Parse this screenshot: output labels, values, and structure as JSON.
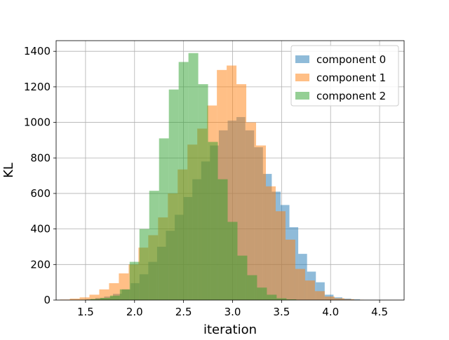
{
  "chart_data": {
    "type": "bar",
    "subtype": "histogram-overlay",
    "xlabel": "iteration",
    "ylabel": "KL",
    "xlim": [
      1.2,
      4.75
    ],
    "ylim": [
      0,
      1460
    ],
    "xticks": [
      "1.5",
      "2.0",
      "2.5",
      "3.0",
      "3.5",
      "4.0",
      "4.5"
    ],
    "yticks": [
      "0",
      "200",
      "400",
      "600",
      "800",
      "1000",
      "1200",
      "1400"
    ],
    "grid": true,
    "legend_position": "upper-right",
    "opacity": 0.5,
    "series": [
      {
        "name": "component 0",
        "color": "#1f77b4",
        "bins": [
          {
            "x0": 1.51,
            "x1": 1.6,
            "y": 5
          },
          {
            "x0": 1.6,
            "x1": 1.69,
            "y": 12
          },
          {
            "x0": 1.69,
            "x1": 1.78,
            "y": 20
          },
          {
            "x0": 1.78,
            "x1": 1.87,
            "y": 35
          },
          {
            "x0": 1.87,
            "x1": 1.96,
            "y": 60
          },
          {
            "x0": 1.96,
            "x1": 2.05,
            "y": 95
          },
          {
            "x0": 2.05,
            "x1": 2.14,
            "y": 145
          },
          {
            "x0": 2.14,
            "x1": 2.23,
            "y": 215
          },
          {
            "x0": 2.23,
            "x1": 2.32,
            "y": 300
          },
          {
            "x0": 2.32,
            "x1": 2.41,
            "y": 390
          },
          {
            "x0": 2.41,
            "x1": 2.5,
            "y": 480
          },
          {
            "x0": 2.5,
            "x1": 2.59,
            "y": 580
          },
          {
            "x0": 2.59,
            "x1": 2.68,
            "y": 680
          },
          {
            "x0": 2.68,
            "x1": 2.77,
            "y": 780
          },
          {
            "x0": 2.77,
            "x1": 2.86,
            "y": 870
          },
          {
            "x0": 2.86,
            "x1": 2.95,
            "y": 955
          },
          {
            "x0": 2.95,
            "x1": 3.04,
            "y": 1010
          },
          {
            "x0": 3.04,
            "x1": 3.13,
            "y": 1030
          },
          {
            "x0": 3.13,
            "x1": 3.22,
            "y": 955
          },
          {
            "x0": 3.22,
            "x1": 3.31,
            "y": 860
          },
          {
            "x0": 3.31,
            "x1": 3.4,
            "y": 710
          },
          {
            "x0": 3.4,
            "x1": 3.49,
            "y": 610
          },
          {
            "x0": 3.49,
            "x1": 3.58,
            "y": 535
          },
          {
            "x0": 3.58,
            "x1": 3.67,
            "y": 410
          },
          {
            "x0": 3.67,
            "x1": 3.76,
            "y": 260
          },
          {
            "x0": 3.76,
            "x1": 3.85,
            "y": 160
          },
          {
            "x0": 3.85,
            "x1": 3.94,
            "y": 100
          },
          {
            "x0": 3.94,
            "x1": 4.03,
            "y": 30
          },
          {
            "x0": 4.03,
            "x1": 4.12,
            "y": 15
          },
          {
            "x0": 4.12,
            "x1": 4.21,
            "y": 8
          },
          {
            "x0": 4.21,
            "x1": 4.3,
            "y": 4
          }
        ]
      },
      {
        "name": "component 1",
        "color": "#ff7f0e",
        "bins": [
          {
            "x0": 1.24,
            "x1": 1.34,
            "y": 3
          },
          {
            "x0": 1.34,
            "x1": 1.44,
            "y": 8
          },
          {
            "x0": 1.44,
            "x1": 1.54,
            "y": 15
          },
          {
            "x0": 1.54,
            "x1": 1.64,
            "y": 30
          },
          {
            "x0": 1.64,
            "x1": 1.74,
            "y": 60
          },
          {
            "x0": 1.74,
            "x1": 1.84,
            "y": 95
          },
          {
            "x0": 1.84,
            "x1": 1.94,
            "y": 150
          },
          {
            "x0": 1.94,
            "x1": 2.04,
            "y": 200
          },
          {
            "x0": 2.04,
            "x1": 2.14,
            "y": 295
          },
          {
            "x0": 2.14,
            "x1": 2.24,
            "y": 365
          },
          {
            "x0": 2.24,
            "x1": 2.34,
            "y": 465
          },
          {
            "x0": 2.34,
            "x1": 2.44,
            "y": 600
          },
          {
            "x0": 2.44,
            "x1": 2.54,
            "y": 735
          },
          {
            "x0": 2.54,
            "x1": 2.64,
            "y": 875
          },
          {
            "x0": 2.64,
            "x1": 2.74,
            "y": 965
          },
          {
            "x0": 2.74,
            "x1": 2.84,
            "y": 1095
          },
          {
            "x0": 2.84,
            "x1": 2.94,
            "y": 1295
          },
          {
            "x0": 2.94,
            "x1": 3.04,
            "y": 1320
          },
          {
            "x0": 3.04,
            "x1": 3.14,
            "y": 1215
          },
          {
            "x0": 3.14,
            "x1": 3.24,
            "y": 1000
          },
          {
            "x0": 3.24,
            "x1": 3.34,
            "y": 870
          },
          {
            "x0": 3.34,
            "x1": 3.44,
            "y": 640
          },
          {
            "x0": 3.44,
            "x1": 3.54,
            "y": 500
          },
          {
            "x0": 3.54,
            "x1": 3.64,
            "y": 340
          },
          {
            "x0": 3.64,
            "x1": 3.74,
            "y": 175
          },
          {
            "x0": 3.74,
            "x1": 3.84,
            "y": 110
          },
          {
            "x0": 3.84,
            "x1": 3.94,
            "y": 50
          },
          {
            "x0": 3.94,
            "x1": 4.04,
            "y": 20
          },
          {
            "x0": 4.04,
            "x1": 4.14,
            "y": 10
          },
          {
            "x0": 4.14,
            "x1": 4.24,
            "y": 5
          },
          {
            "x0": 4.24,
            "x1": 4.34,
            "y": 2
          }
        ]
      },
      {
        "name": "component 2",
        "color": "#2ca02c",
        "bins": [
          {
            "x0": 1.45,
            "x1": 1.55,
            "y": 2
          },
          {
            "x0": 1.55,
            "x1": 1.65,
            "y": 6
          },
          {
            "x0": 1.65,
            "x1": 1.75,
            "y": 12
          },
          {
            "x0": 1.75,
            "x1": 1.85,
            "y": 25
          },
          {
            "x0": 1.85,
            "x1": 1.95,
            "y": 60
          },
          {
            "x0": 1.95,
            "x1": 2.05,
            "y": 215
          },
          {
            "x0": 2.05,
            "x1": 2.15,
            "y": 400
          },
          {
            "x0": 2.15,
            "x1": 2.25,
            "y": 615
          },
          {
            "x0": 2.25,
            "x1": 2.35,
            "y": 910
          },
          {
            "x0": 2.35,
            "x1": 2.45,
            "y": 1185
          },
          {
            "x0": 2.45,
            "x1": 2.55,
            "y": 1340
          },
          {
            "x0": 2.55,
            "x1": 2.65,
            "y": 1390
          },
          {
            "x0": 2.65,
            "x1": 2.75,
            "y": 1215
          },
          {
            "x0": 2.75,
            "x1": 2.85,
            "y": 890
          },
          {
            "x0": 2.85,
            "x1": 2.95,
            "y": 680
          },
          {
            "x0": 2.95,
            "x1": 3.05,
            "y": 440
          },
          {
            "x0": 3.05,
            "x1": 3.15,
            "y": 250
          },
          {
            "x0": 3.15,
            "x1": 3.25,
            "y": 140
          },
          {
            "x0": 3.25,
            "x1": 3.35,
            "y": 70
          },
          {
            "x0": 3.35,
            "x1": 3.45,
            "y": 30
          },
          {
            "x0": 3.45,
            "x1": 3.55,
            "y": 10
          },
          {
            "x0": 3.55,
            "x1": 3.65,
            "y": 4
          }
        ]
      }
    ]
  }
}
